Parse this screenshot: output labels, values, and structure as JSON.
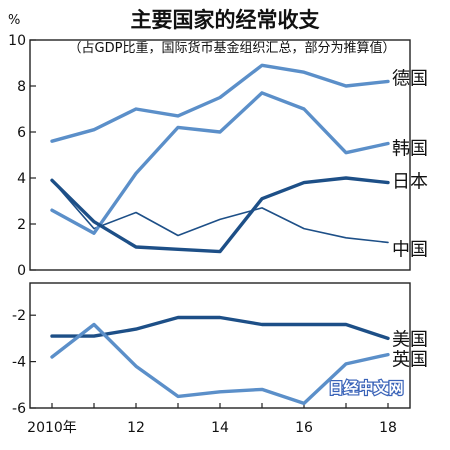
{
  "chart_data": {
    "type": "line",
    "title": "主要国家的经常收支",
    "subtitle": "（占GDP比重，国际货币基金组织汇总，部分为推算值）",
    "y_unit": "%",
    "x": [
      2010,
      2011,
      2012,
      2013,
      2014,
      2015,
      2016,
      2017,
      2018
    ],
    "x_tick_labels": [
      {
        "x": 2010,
        "label": "2010年"
      },
      {
        "x": 2012,
        "label": "12"
      },
      {
        "x": 2014,
        "label": "14"
      },
      {
        "x": 2016,
        "label": "16"
      },
      {
        "x": 2018,
        "label": "18"
      }
    ],
    "ylim": [
      -6,
      10
    ],
    "y_ticks": [
      10,
      8,
      6,
      4,
      2,
      0,
      -2,
      -4,
      -6
    ],
    "axis_break": [
      0,
      -1
    ],
    "series": [
      {
        "name": "德国",
        "color": "#5b8fc9",
        "weight": "thick",
        "values": [
          5.6,
          6.1,
          7.0,
          6.7,
          7.5,
          8.9,
          8.6,
          8.0,
          8.2
        ]
      },
      {
        "name": "韩国",
        "color": "#5b8fc9",
        "weight": "thick",
        "values": [
          2.6,
          1.6,
          4.2,
          6.2,
          6.0,
          7.7,
          7.0,
          5.1,
          5.5
        ]
      },
      {
        "name": "日本",
        "color": "#1d4f87",
        "weight": "thick",
        "values": [
          3.9,
          2.1,
          1.0,
          0.9,
          0.8,
          3.1,
          3.8,
          4.0,
          3.8
        ]
      },
      {
        "name": "中国",
        "color": "#1d4f87",
        "weight": "thin",
        "values": [
          3.9,
          1.8,
          2.5,
          1.5,
          2.2,
          2.7,
          1.8,
          1.4,
          1.2
        ]
      },
      {
        "name": "美国",
        "color": "#1d4f87",
        "weight": "thick",
        "values": [
          -2.9,
          -2.9,
          -2.6,
          -2.1,
          -2.1,
          -2.4,
          -2.4,
          -2.4,
          -3.0
        ]
      },
      {
        "name": "英国",
        "color": "#5b8fc9",
        "weight": "thick",
        "values": [
          -3.8,
          -2.4,
          -4.2,
          -5.5,
          -5.3,
          -5.2,
          -5.8,
          -4.1,
          -3.7
        ]
      }
    ],
    "grid": false,
    "legend": "inline-right"
  },
  "watermark": "日经中文网"
}
